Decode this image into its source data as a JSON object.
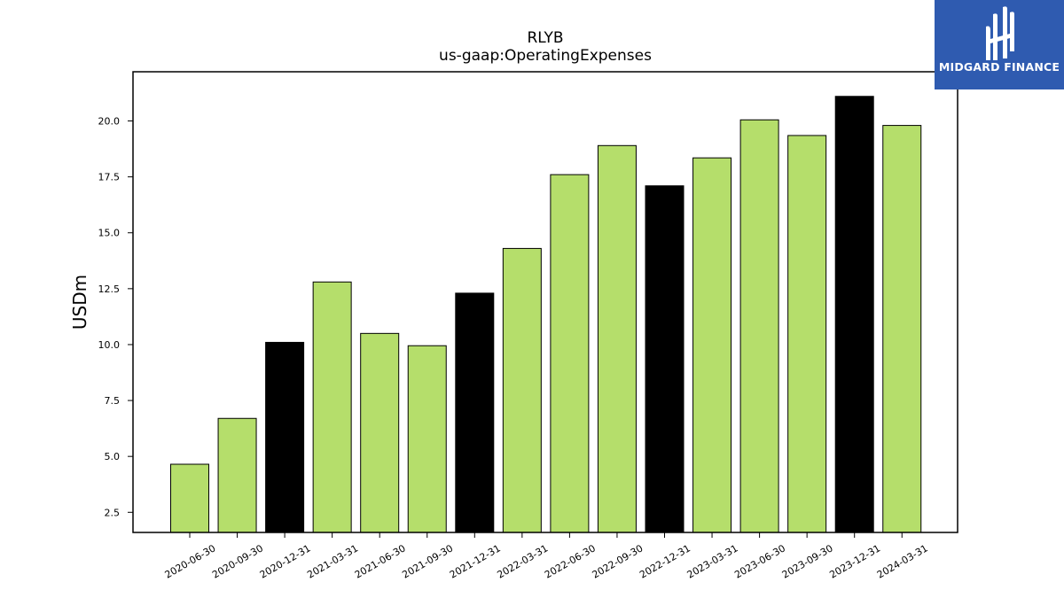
{
  "brand": {
    "name": "MIDGARD FINANCE",
    "bg_color": "#2f5bb0"
  },
  "chart_data": {
    "type": "bar",
    "title": "RLYB",
    "subtitle": "us-gaap:OperatingExpenses",
    "xlabel": "",
    "ylabel": "USDm",
    "ylim": [
      1.6,
      22.2
    ],
    "yticks": [
      2.5,
      5.0,
      7.5,
      10.0,
      12.5,
      15.0,
      17.5,
      20.0
    ],
    "grid": false,
    "categories": [
      "2020-06-30",
      "2020-09-30",
      "2020-12-31",
      "2021-03-31",
      "2021-06-30",
      "2021-09-30",
      "2021-12-31",
      "2022-03-31",
      "2022-06-30",
      "2022-09-30",
      "2022-12-31",
      "2023-03-31",
      "2023-06-30",
      "2023-09-30",
      "2023-12-31",
      "2024-03-31"
    ],
    "values": [
      4.65,
      6.7,
      10.1,
      12.8,
      10.5,
      9.95,
      12.3,
      14.3,
      17.6,
      18.9,
      17.1,
      18.35,
      20.05,
      19.35,
      21.1,
      19.8
    ],
    "colors": {
      "quarter": "#b5de6b",
      "year_end": "#000000",
      "edge": "#000000"
    }
  }
}
